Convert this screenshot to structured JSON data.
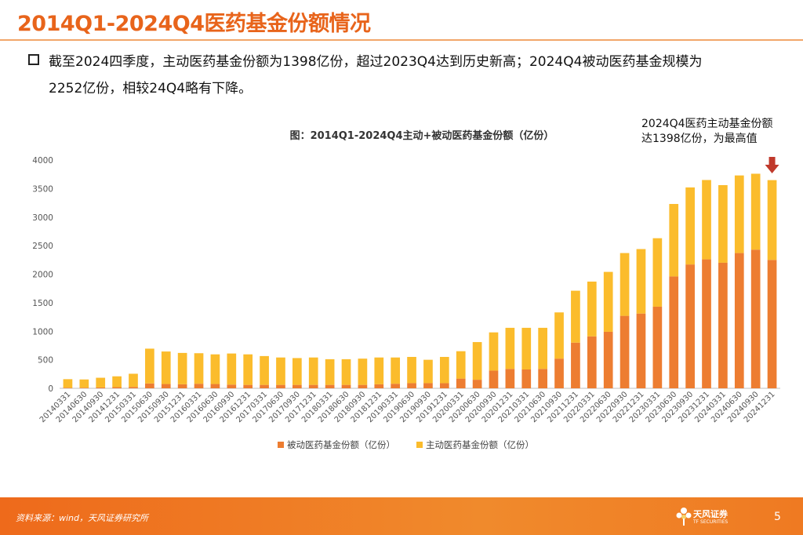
{
  "slide": {
    "title": "2014Q1-2024Q4医药基金份额情况",
    "bullet_line1": "截至2024四季度，主动医药基金份额为1398亿份，超过2023Q4达到历史新高；2024Q4被动医药基金规模为",
    "bullet_line2": "2252亿份，相较24Q4略有下降。",
    "callout_line1": "2024Q4医药主动基金份额",
    "callout_line2": "达1398亿份，为最高值"
  },
  "footer": {
    "source": "资料来源：wind，天风证券研究所",
    "logo_text": "天风证券",
    "logo_sub": "TF SECURITIES",
    "page": "5"
  },
  "colors": {
    "accent": "#e8641b",
    "passive": "#ed7d31",
    "active": "#fbbc2c",
    "arrow": "#c0392b"
  },
  "chart_data": {
    "type": "bar",
    "stacked": true,
    "title": "图：2014Q1-2024Q4主动+被动医药基金份额（亿份）",
    "ylim": [
      0,
      4000
    ],
    "yticks": [
      0,
      500,
      1000,
      1500,
      2000,
      2500,
      3000,
      3500,
      4000
    ],
    "legend_position": "bottom",
    "categories": [
      "20140331",
      "20140630",
      "20140930",
      "20141231",
      "20150331",
      "20150630",
      "20150930",
      "20151231",
      "20160331",
      "20160630",
      "20160930",
      "20161231",
      "20170331",
      "20170630",
      "20170930",
      "20171231",
      "20180331",
      "20180630",
      "20180930",
      "20181231",
      "20190331",
      "20190630",
      "20190930",
      "20191231",
      "20200331",
      "20200630",
      "20200930",
      "20201231",
      "20210331",
      "20210630",
      "20210930",
      "20211231",
      "20220331",
      "20220630",
      "20220930",
      "20221231",
      "20230331",
      "20230630",
      "20230930",
      "20231231",
      "20240331",
      "20240630",
      "20240930",
      "20241231"
    ],
    "series": [
      {
        "name": "被动医药基金份额（亿份）",
        "values": [
          10,
          10,
          15,
          20,
          25,
          85,
          75,
          70,
          80,
          75,
          65,
          60,
          60,
          60,
          60,
          60,
          60,
          60,
          60,
          70,
          80,
          90,
          90,
          90,
          170,
          150,
          310,
          340,
          330,
          340,
          520,
          800,
          910,
          990,
          1270,
          1310,
          1430,
          1960,
          2170,
          2260,
          2200,
          2370,
          2430,
          2250
        ]
      },
      {
        "name": "主动医药基金份额（亿份）",
        "values": [
          150,
          145,
          170,
          190,
          230,
          610,
          570,
          550,
          535,
          520,
          545,
          535,
          505,
          480,
          470,
          480,
          450,
          450,
          460,
          470,
          460,
          460,
          410,
          460,
          480,
          660,
          670,
          720,
          730,
          720,
          810,
          910,
          960,
          1050,
          1100,
          1130,
          1200,
          1270,
          1350,
          1390,
          1360,
          1360,
          1330,
          1398
        ]
      }
    ]
  }
}
